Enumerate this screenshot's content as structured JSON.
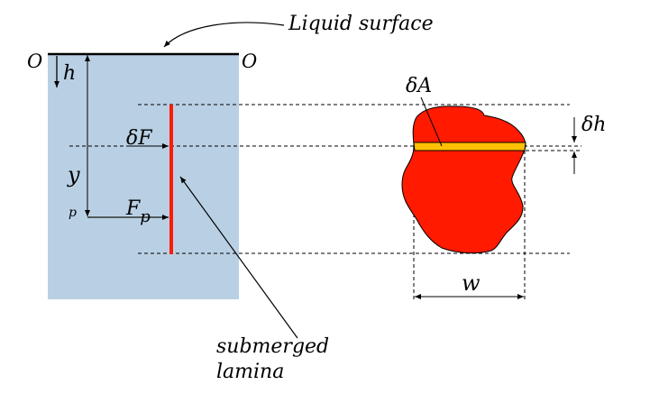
{
  "labels": {
    "liquid_surface": "Liquid surface",
    "origin_left": "O",
    "origin_right": "O",
    "depth": "h",
    "y": "y",
    "p": "p",
    "delta_f": "δF",
    "fp_main": "F",
    "fp_sub": "p",
    "lamina_line1": "submerged",
    "lamina_line2": "lamina",
    "delta_a": "δA",
    "delta_h": "δh",
    "width": "w"
  },
  "colors": {
    "liquid": "#b9d0e4",
    "lamina": "#ff1a00",
    "strip": "#ffc000"
  }
}
